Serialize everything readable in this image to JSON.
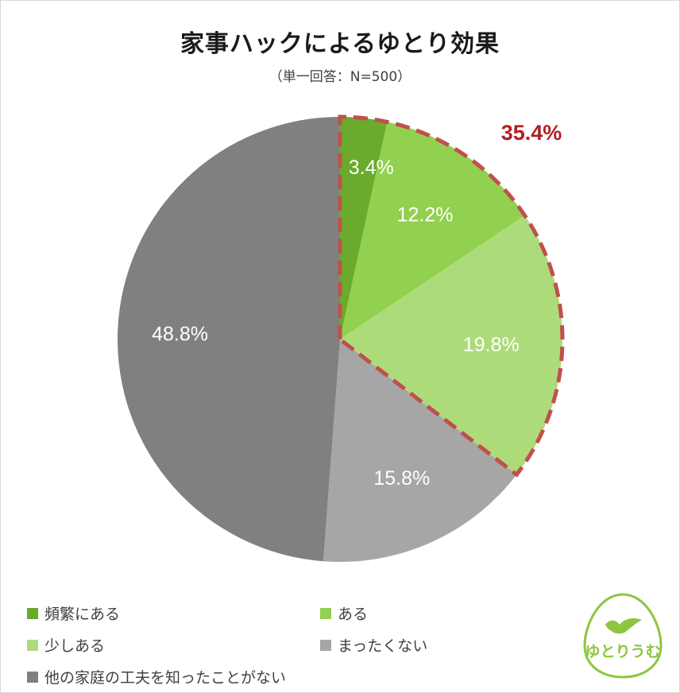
{
  "chart_data": {
    "type": "pie",
    "title": "家事ハックによるゆとり効果",
    "subtitle": "（単一回答：N=500）",
    "slices": [
      {
        "label": "頻繁にある",
        "value": 3.4,
        "display": "3.4%",
        "color": "#6aaa2c"
      },
      {
        "label": "ある",
        "value": 12.2,
        "display": "12.2%",
        "color": "#92d050"
      },
      {
        "label": "少しある",
        "value": 19.8,
        "display": "19.8%",
        "color": "#aedb7a"
      },
      {
        "label": "まったくない",
        "value": 15.8,
        "display": "15.8%",
        "color": "#a6a6a6"
      },
      {
        "label": "他の家庭の工夫を知ったことがない",
        "value": 48.8,
        "display": "48.8%",
        "color": "#808080"
      }
    ],
    "highlight": {
      "label": "35.4%",
      "color": "#b01f24",
      "border_color": "#c0504d"
    },
    "legend_placement": "bottom"
  },
  "logo": {
    "text": "ゆとりうむ",
    "color": "#8cc63f"
  }
}
